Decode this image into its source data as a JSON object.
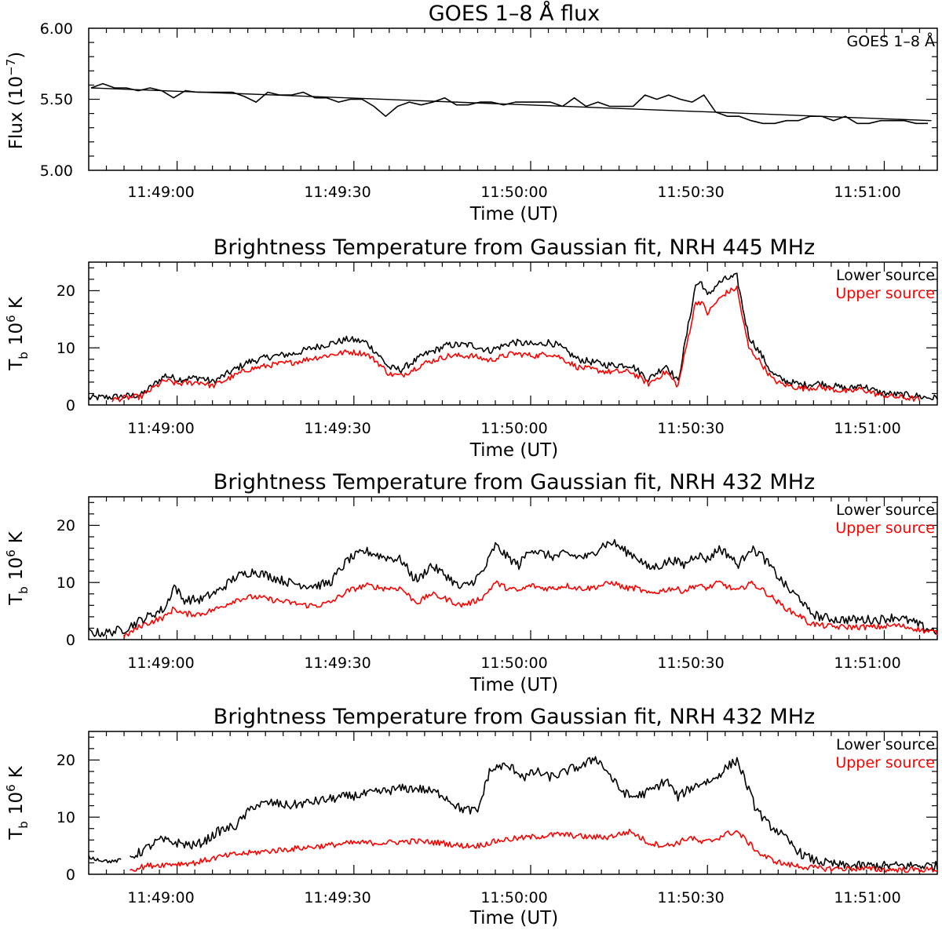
{
  "colors": {
    "black": "#000000",
    "red": "#ff0000",
    "background": "#ffffff"
  },
  "chart_data": [
    {
      "type": "line",
      "title": "GOES 1–8 Å flux",
      "xlabel": "Time (UT)",
      "ylabel": "Flux (10⁻⁷)",
      "ylabel_main": "Flux (10",
      "ylabel_exp": "−7",
      "ylabel_close": ")",
      "xlim_seconds": [
        0,
        144
      ],
      "ylim": [
        5.0,
        6.0
      ],
      "yticks": [
        "5.00",
        "5.50",
        "6.00"
      ],
      "ytick_values": [
        5.0,
        5.5,
        6.0
      ],
      "xtick_labels": [
        "11:49:00",
        "11:49:30",
        "11:50:00",
        "11:50:30",
        "11:51:00"
      ],
      "xtick_seconds": [
        15,
        45,
        75,
        105,
        135
      ],
      "x_origin": "11:48:45",
      "legend": [
        "GOES 1–8 Å"
      ],
      "series": [
        {
          "name": "GOES 1–8 Å",
          "color": "#000000",
          "t": [
            0.4,
            2.4,
            4.4,
            6.4,
            8.4,
            10.4,
            12.4,
            14.4,
            16.4,
            18.4,
            20.4,
            22.4,
            24.4,
            26.4,
            28.4,
            30.4,
            32.4,
            34.4,
            36.4,
            38.4,
            40.4,
            42.4,
            44.4,
            46.4,
            48.4,
            50.4,
            52.4,
            54.4,
            56.4,
            58.4,
            60.4,
            62.4,
            64.4,
            66.4,
            68.4,
            70.4,
            72.4,
            74.4,
            76.4,
            78.4,
            80.4,
            82.4,
            84.4,
            86.4,
            88.4,
            90.4,
            92.4,
            94.4,
            96.4,
            98.4,
            100.4,
            102.4,
            104.4,
            106.4,
            108.4,
            110.4,
            112.4,
            114.4,
            116.4,
            118.4,
            120.4,
            122.4,
            124.4,
            126.4,
            128.4,
            130.4,
            132.4,
            134.4,
            136.4,
            138.4,
            140.4,
            142.4
          ],
          "values": [
            5.58,
            5.61,
            5.58,
            5.58,
            5.56,
            5.58,
            5.56,
            5.51,
            5.56,
            5.55,
            5.55,
            5.55,
            5.55,
            5.52,
            5.48,
            5.55,
            5.53,
            5.53,
            5.55,
            5.51,
            5.51,
            5.48,
            5.5,
            5.5,
            5.45,
            5.38,
            5.45,
            5.48,
            5.46,
            5.48,
            5.51,
            5.46,
            5.46,
            5.48,
            5.48,
            5.46,
            5.48,
            5.48,
            5.48,
            5.48,
            5.45,
            5.51,
            5.45,
            5.48,
            5.45,
            5.45,
            5.45,
            5.53,
            5.5,
            5.53,
            5.5,
            5.48,
            5.53,
            5.41,
            5.38,
            5.38,
            5.35,
            5.33,
            5.33,
            5.35,
            5.35,
            5.38,
            5.38,
            5.35,
            5.38,
            5.33,
            5.33,
            5.35,
            5.35,
            5.35,
            5.33,
            5.33
          ]
        },
        {
          "name": "Linear fit",
          "color": "#000000",
          "t": [
            0.4,
            143.0
          ],
          "values": [
            5.58,
            5.35
          ]
        }
      ]
    },
    {
      "type": "line",
      "title": "Brightness Temperature from Gaussian fit, NRH 445 MHz",
      "xlabel": "Time (UT)",
      "ylabel": "Tb 10⁶ K",
      "ylabel_T": "T",
      "ylabel_sub": "b",
      "ylabel_mid": "10",
      "ylabel_exp": "6",
      "ylabel_unit": "K",
      "xlim_seconds": [
        0,
        144
      ],
      "ylim": [
        0,
        25
      ],
      "yticks": [
        "0",
        "10",
        "20"
      ],
      "ytick_values": [
        0,
        10,
        20
      ],
      "xtick_labels": [
        "11:49:00",
        "11:49:30",
        "11:50:00",
        "11:50:30",
        "11:51:00"
      ],
      "xtick_seconds": [
        15,
        45,
        75,
        105,
        135
      ],
      "legend": [
        "Lower source",
        "Upper source"
      ],
      "series": [
        {
          "name": "Lower source",
          "color": "#000000",
          "knots_t": [
            0,
            6,
            9,
            11,
            13,
            15,
            19,
            21,
            27,
            31,
            35,
            38,
            44,
            47,
            49,
            51,
            53,
            57,
            61,
            65,
            68,
            72,
            76,
            78,
            79.5,
            83,
            88,
            92,
            95,
            98,
            100,
            103,
            104,
            105,
            106.5,
            108,
            110,
            111,
            112,
            114,
            116,
            117.5,
            119,
            121,
            124,
            127,
            129,
            131,
            134,
            137,
            140,
            142,
            144
          ],
          "knots_v": [
            1.2,
            1.5,
            1.8,
            3.5,
            5.2,
            4.5,
            4.8,
            4.0,
            7.5,
            8.5,
            9.0,
            10.0,
            11.5,
            11.0,
            9.0,
            6.5,
            6.2,
            8.8,
            10.5,
            10.5,
            9.5,
            11.0,
            10.5,
            11.0,
            10.5,
            8.0,
            7.0,
            7.0,
            4.5,
            7.0,
            4.0,
            21.0,
            21.5,
            19.0,
            21.0,
            22.0,
            22.5,
            17.0,
            12.0,
            9.0,
            5.5,
            4.5,
            4.0,
            3.5,
            3.8,
            3.2,
            2.8,
            3.5,
            2.2,
            1.8,
            1.7,
            1.3,
            1.2
          ],
          "noise": 0.6
        },
        {
          "name": "Upper source",
          "color": "#ff0000",
          "knots_t": [
            4,
            6,
            9,
            11,
            13,
            15,
            19,
            21,
            27,
            31,
            35,
            38,
            44,
            47,
            49,
            51,
            53,
            57,
            61,
            65,
            68,
            72,
            76,
            78,
            79.5,
            83,
            88,
            92,
            95,
            98,
            100,
            103,
            104,
            105,
            106.5,
            108,
            110,
            111,
            112,
            114,
            116,
            117.5,
            119,
            121,
            124,
            127,
            129,
            131,
            134,
            137,
            140,
            141
          ],
          "knots_v": [
            0.9,
            1.2,
            1.5,
            3.0,
            4.3,
            3.7,
            4.0,
            3.3,
            6.2,
            7.0,
            7.5,
            8.2,
            9.3,
            9.0,
            7.5,
            5.4,
            5.1,
            7.3,
            8.6,
            8.6,
            7.8,
            9.0,
            8.6,
            9.0,
            8.6,
            6.6,
            5.8,
            5.8,
            3.7,
            5.8,
            3.3,
            18.0,
            18.0,
            16.0,
            18.0,
            19.5,
            20.5,
            15.0,
            10.0,
            7.5,
            4.5,
            3.7,
            3.3,
            2.9,
            3.1,
            2.6,
            2.3,
            2.8,
            1.8,
            1.4,
            1.1,
            0.9
          ],
          "noise": 0.5
        }
      ]
    },
    {
      "type": "line",
      "title": "Brightness Temperature from Gaussian fit, NRH 432 MHz",
      "xlabel": "Time (UT)",
      "ylabel": "Tb 10⁶ K",
      "ylabel_T": "T",
      "ylabel_sub": "b",
      "ylabel_mid": "10",
      "ylabel_exp": "6",
      "ylabel_unit": "K",
      "xlim_seconds": [
        0,
        144
      ],
      "ylim": [
        0,
        25
      ],
      "yticks": [
        "0",
        "10",
        "20"
      ],
      "ytick_values": [
        0,
        10,
        20
      ],
      "xtick_labels": [
        "11:49:00",
        "11:49:30",
        "11:50:00",
        "11:50:30",
        "11:51:00"
      ],
      "xtick_seconds": [
        15,
        45,
        75,
        105,
        135
      ],
      "legend": [
        "Lower source",
        "Upper source"
      ],
      "series": [
        {
          "name": "Lower source",
          "color": "#000000",
          "knots_t": [
            0,
            3,
            6,
            9,
            13,
            14.5,
            16,
            19,
            22,
            25,
            28,
            31,
            34,
            37,
            39,
            41,
            44,
            47,
            50,
            53,
            55,
            56,
            58,
            61,
            63,
            65,
            67,
            69,
            71,
            73,
            75,
            77,
            79,
            81,
            83,
            85,
            87,
            89,
            91,
            93,
            95,
            97,
            99,
            101,
            103,
            105,
            107,
            109,
            110,
            111,
            112,
            114,
            117,
            119,
            121,
            122,
            124,
            127,
            130,
            134,
            137,
            140,
            142,
            144
          ],
          "knots_v": [
            1.2,
            1.2,
            1.8,
            3.5,
            5.5,
            9.5,
            7.0,
            7.0,
            8.5,
            11.0,
            12.0,
            11.0,
            10.0,
            9.5,
            9.5,
            10.0,
            14.0,
            15.5,
            14.5,
            14.0,
            11.0,
            10.5,
            13.0,
            11.0,
            9.0,
            10.0,
            12.0,
            16.5,
            14.5,
            13.0,
            16.0,
            15.0,
            14.5,
            15.0,
            14.5,
            14.5,
            16.5,
            17.0,
            15.5,
            14.5,
            12.5,
            13.0,
            14.0,
            13.0,
            15.0,
            14.0,
            16.0,
            14.5,
            13.0,
            14.0,
            16.0,
            15.0,
            11.0,
            8.5,
            7.0,
            5.0,
            4.0,
            3.5,
            3.5,
            3.5,
            4.0,
            3.0,
            2.0,
            1.5
          ],
          "noise": 0.8
        },
        {
          "name": "Upper source",
          "color": "#ff0000",
          "knots_t": [
            6,
            9,
            13,
            14.5,
            16,
            19,
            22,
            25,
            28,
            31,
            34,
            37,
            39,
            41,
            44,
            47,
            50,
            53,
            55,
            56,
            58,
            61,
            63,
            65,
            67,
            69,
            71,
            73,
            75,
            77,
            79,
            81,
            83,
            85,
            87,
            89,
            91,
            93,
            95,
            97,
            99,
            101,
            103,
            105,
            107,
            109,
            110,
            111,
            112,
            114,
            117,
            119,
            121,
            122,
            124,
            127,
            130,
            134,
            137,
            140,
            142,
            144
          ],
          "knots_v": [
            0.5,
            2.5,
            4.0,
            5.5,
            4.5,
            4.5,
            5.5,
            7.0,
            7.5,
            7.0,
            6.5,
            6.0,
            6.0,
            6.5,
            8.5,
            9.5,
            9.0,
            9.0,
            7.0,
            6.5,
            8.0,
            7.0,
            6.0,
            6.5,
            7.5,
            10.0,
            9.0,
            8.5,
            9.5,
            9.0,
            9.0,
            9.5,
            9.0,
            9.0,
            9.5,
            10.0,
            9.0,
            9.0,
            8.0,
            8.5,
            9.0,
            8.5,
            9.5,
            9.0,
            10.0,
            9.0,
            8.5,
            9.0,
            10.0,
            9.0,
            6.5,
            5.0,
            4.0,
            3.0,
            2.5,
            2.2,
            2.2,
            2.2,
            2.5,
            2.0,
            1.5,
            1.2
          ],
          "noise": 0.5
        }
      ]
    },
    {
      "type": "line",
      "title": "Brightness Temperature from Gaussian fit, NRH 432 MHz",
      "xlabel": "Time (UT)",
      "ylabel": "Tb 10⁶ K",
      "ylabel_T": "T",
      "ylabel_sub": "b",
      "ylabel_mid": "10",
      "ylabel_exp": "6",
      "ylabel_unit": "K",
      "xlim_seconds": [
        0,
        144
      ],
      "ylim": [
        0,
        25
      ],
      "yticks": [
        "0",
        "10",
        "20"
      ],
      "ytick_values": [
        0,
        10,
        20
      ],
      "xtick_labels": [
        "11:49:00",
        "11:49:30",
        "11:50:00",
        "11:50:30",
        "11:51:00"
      ],
      "xtick_seconds": [
        15,
        45,
        75,
        105,
        135
      ],
      "legend": [
        "Lower source",
        "Upper source"
      ],
      "series": [
        {
          "name": "Lower source",
          "color": "#000000",
          "segments": [
            {
              "knots_t": [
                0,
                2,
                4,
                5.5
              ],
              "knots_v": [
                3.0,
                2.5,
                2.2,
                2.5
              ],
              "noise": 0.3
            },
            {
              "knots_t": [
                7,
                9,
                12,
                15,
                18,
                20,
                22,
                25,
                28,
                31,
                34,
                37,
                40,
                43,
                47,
                50,
                53,
                56,
                60,
                63,
                66,
                68,
                70,
                72,
                74,
                76,
                78,
                80,
                82,
                84,
                86,
                88,
                90,
                92,
                94,
                96,
                98,
                100,
                102,
                104,
                106,
                108,
                110,
                111,
                113,
                115,
                117,
                119,
                121,
                123,
                125,
                128,
                132,
                136,
                140,
                142,
                144
              ],
              "knots_v": [
                3.0,
                4.0,
                6.0,
                5.5,
                5.0,
                6.0,
                7.5,
                8.5,
                12.0,
                12.5,
                12.0,
                12.5,
                13.0,
                13.5,
                14.0,
                14.5,
                15.0,
                15.0,
                14.0,
                11.5,
                11.0,
                18.0,
                19.0,
                18.5,
                17.0,
                18.0,
                17.0,
                17.5,
                18.5,
                19.0,
                20.5,
                18.0,
                15.0,
                13.5,
                14.0,
                15.0,
                16.5,
                13.5,
                15.0,
                16.0,
                16.5,
                18.5,
                20.0,
                17.5,
                12.0,
                9.0,
                7.5,
                5.5,
                3.5,
                2.5,
                2.0,
                1.5,
                1.5,
                1.5,
                1.5,
                1.5,
                1.5
              ],
              "noise": 0.8
            }
          ]
        },
        {
          "name": "Upper source",
          "color": "#ff0000",
          "knots_t": [
            7,
            10,
            14,
            18,
            20,
            22,
            25,
            30,
            35,
            40,
            45,
            50,
            55,
            60,
            63,
            66,
            70,
            75,
            80,
            85,
            88,
            90,
            92,
            95,
            98,
            100,
            102,
            104,
            106,
            108,
            110,
            112,
            114,
            116,
            118,
            120,
            122,
            125,
            130,
            135,
            140,
            144
          ],
          "knots_v": [
            0.8,
            1.5,
            1.8,
            2.0,
            2.5,
            3.0,
            3.5,
            4.0,
            4.5,
            5.0,
            5.5,
            5.5,
            5.8,
            5.5,
            5.0,
            5.0,
            6.0,
            6.5,
            7.0,
            6.5,
            6.5,
            7.0,
            7.5,
            5.5,
            5.0,
            5.5,
            6.5,
            5.5,
            6.0,
            7.0,
            7.5,
            5.5,
            3.5,
            2.5,
            1.8,
            1.5,
            1.2,
            1.0,
            1.0,
            0.8,
            0.8,
            0.8
          ],
          "noise": 0.5
        }
      ]
    }
  ]
}
